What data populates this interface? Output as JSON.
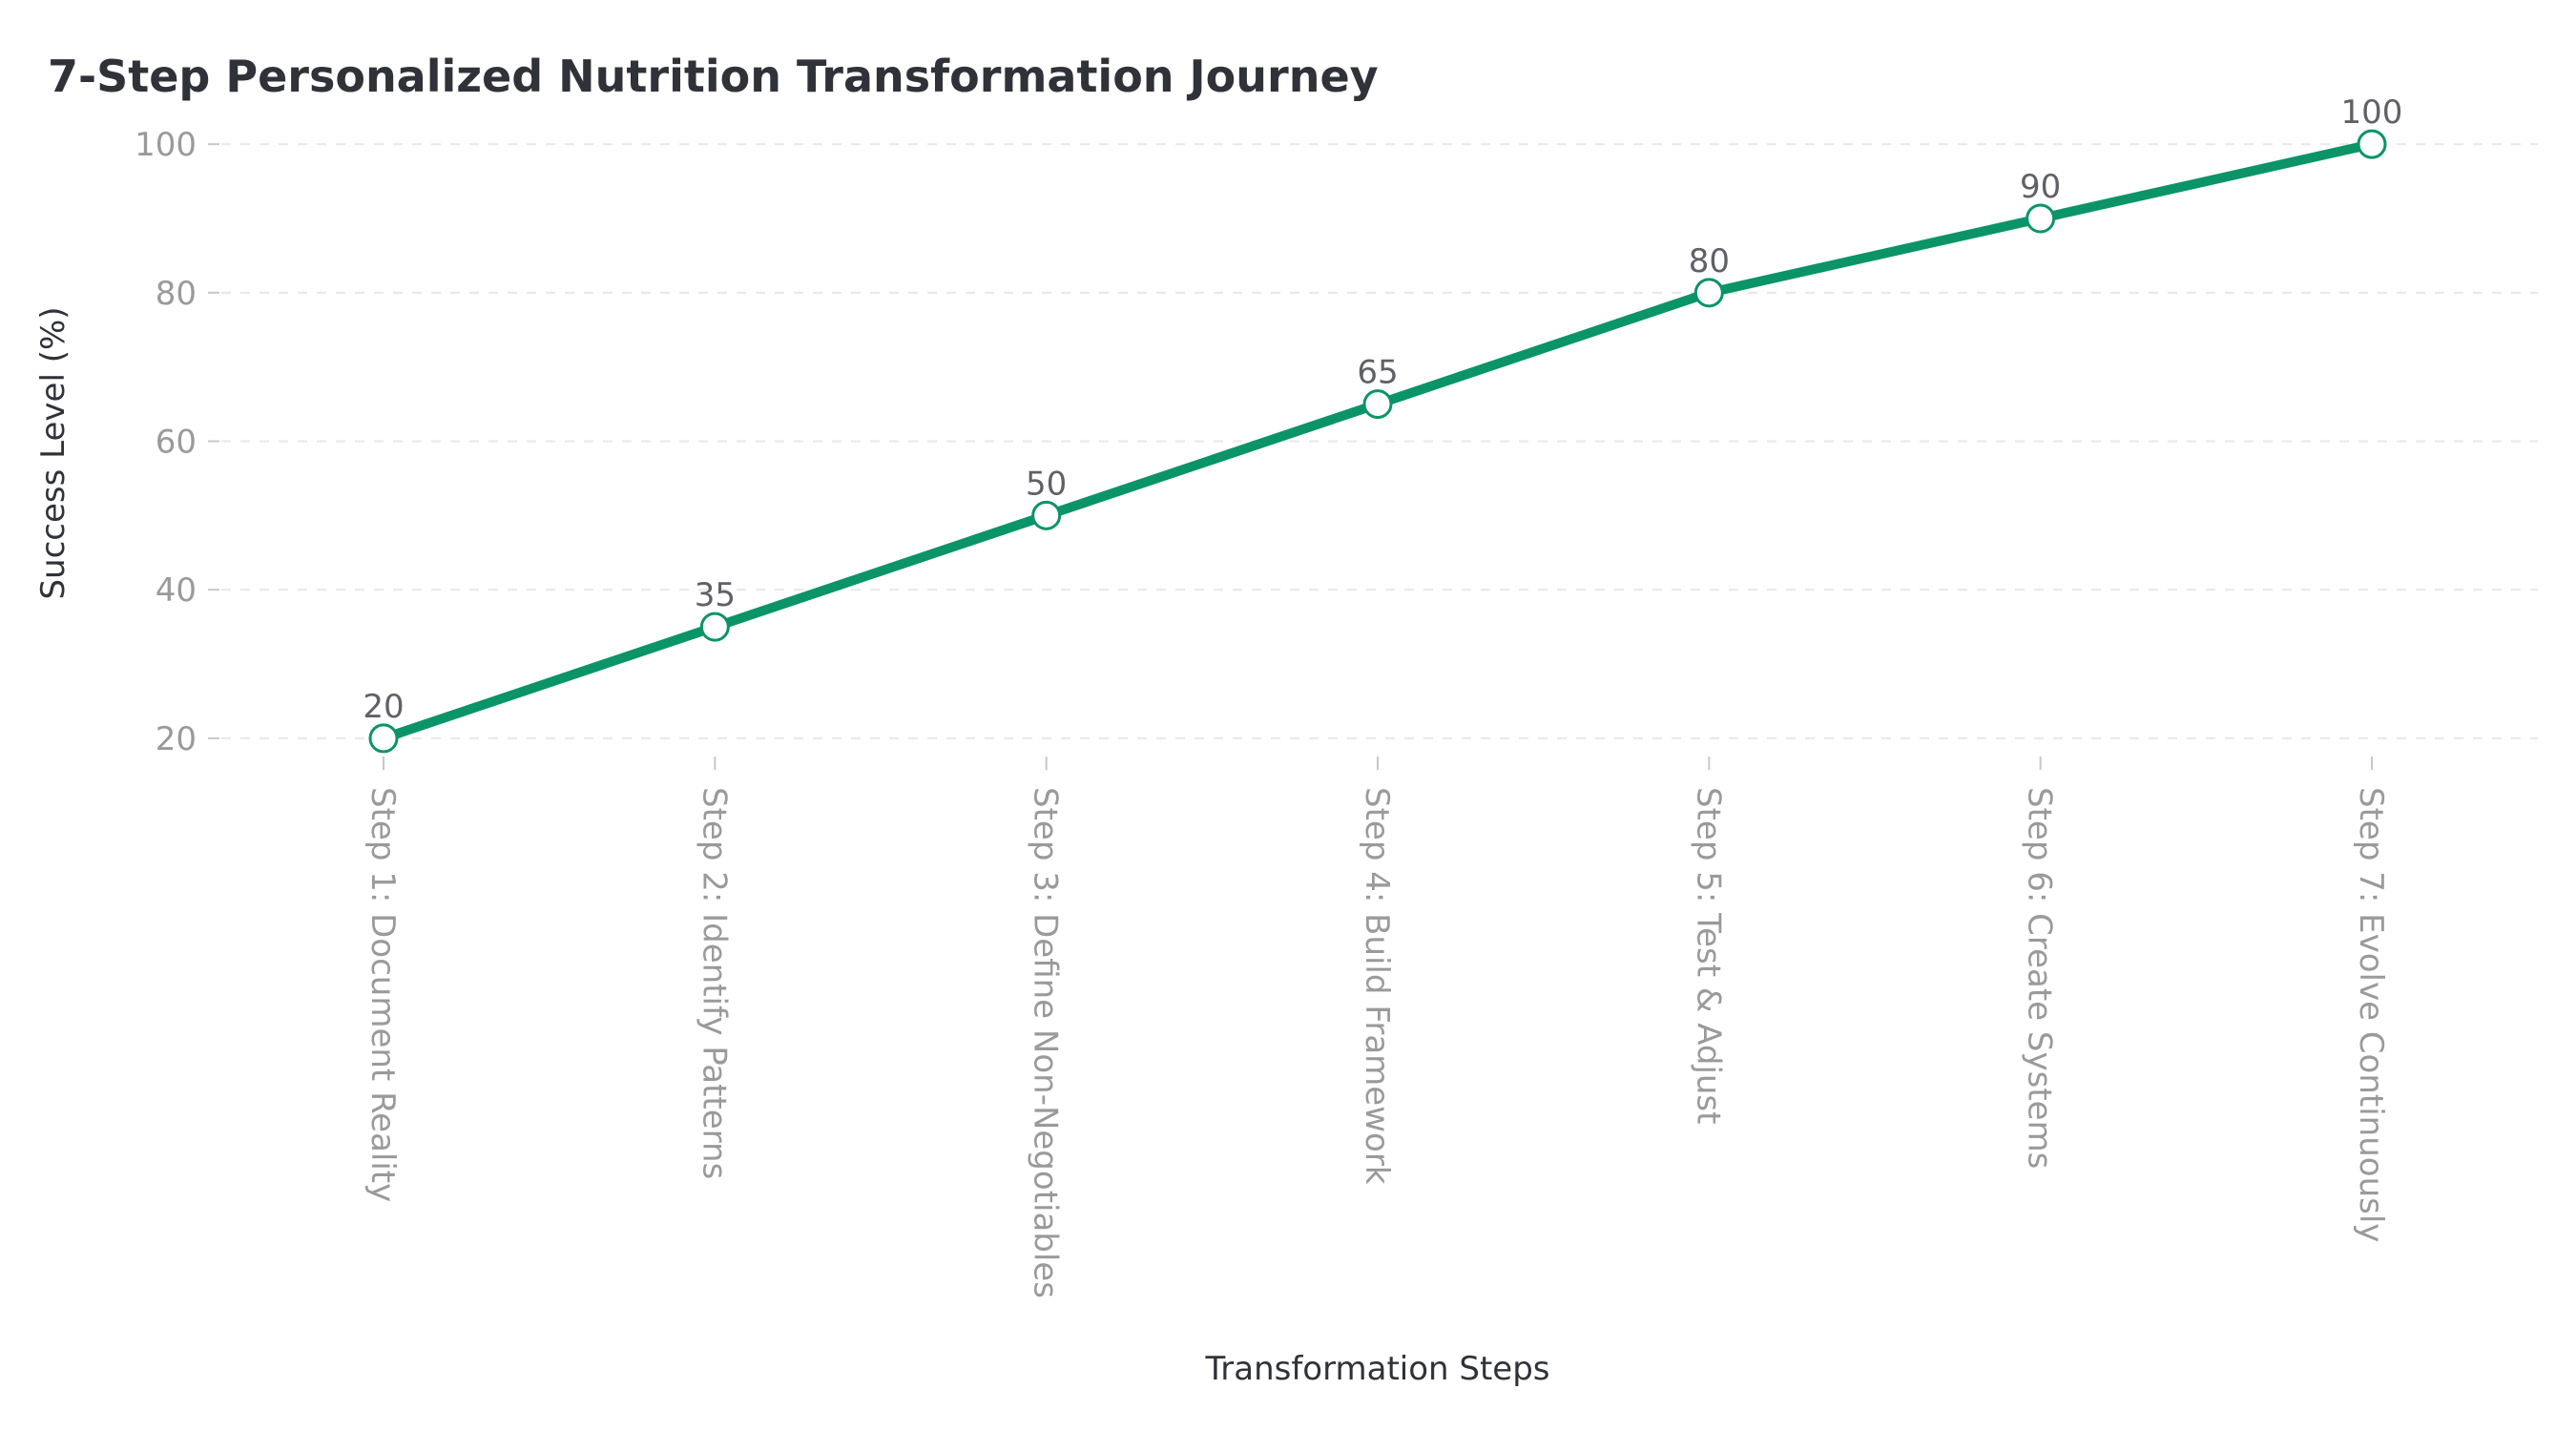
{
  "chart_data": {
    "type": "line",
    "title": "7-Step Personalized Nutrition Transformation Journey",
    "xlabel": "Transformation Steps",
    "ylabel": "Success Level (%)",
    "categories": [
      "Step 1: Document Reality",
      "Step 2: Identify Patterns",
      "Step 3: Define Non-Negotiables",
      "Step 4: Build Framework",
      "Step 5: Test & Adjust",
      "Step 6: Create Systems",
      "Step 7: Evolve Continuously"
    ],
    "series": [
      {
        "values": [
          20,
          35,
          50,
          65,
          80,
          90,
          100
        ],
        "color": "#0a9467",
        "marker_fill": "#ffffff"
      }
    ],
    "yticks": [
      "20",
      "40",
      "60",
      "80",
      "100"
    ],
    "ylim": [
      16,
      104
    ],
    "grid": true,
    "data_labels": [
      "20",
      "35",
      "50",
      "65",
      "80",
      "90",
      "100"
    ]
  }
}
